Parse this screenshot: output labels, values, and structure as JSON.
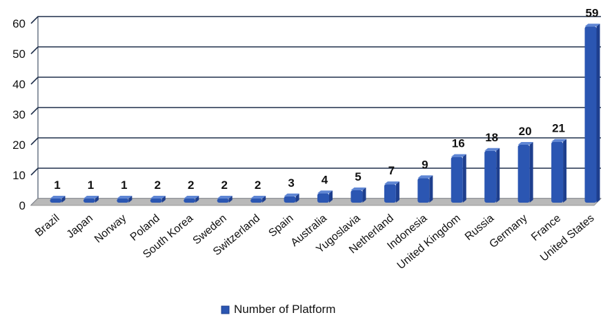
{
  "chart_data": {
    "type": "bar",
    "title": "",
    "xlabel": "",
    "ylabel": "",
    "ylim": [
      0,
      60
    ],
    "yticks": [
      0,
      10,
      20,
      30,
      40,
      50,
      60
    ],
    "grid": true,
    "legend_position": "bottom",
    "categories": [
      "Brazil",
      "Japan",
      "Norway",
      "Poland",
      "South Korea",
      "Sweden",
      "Switzerland",
      "Spain",
      "Australia",
      "Yugoslavia",
      "Netherland",
      "Indonesia",
      "United Kingdom",
      "Russia",
      "Germany",
      "France",
      "United States"
    ],
    "series": [
      {
        "name": "Number of Platform",
        "values": [
          1,
          1,
          1,
          2,
          2,
          2,
          2,
          3,
          4,
          5,
          7,
          9,
          16,
          18,
          20,
          21,
          59
        ],
        "color": "#2B56B2"
      }
    ]
  },
  "colors": {
    "bar_top": "#5F86D4",
    "bar_side": "#1E3F8E",
    "floor": "#B9B9B9",
    "grid": "#1F2F4A",
    "axis_text": "#111111"
  }
}
